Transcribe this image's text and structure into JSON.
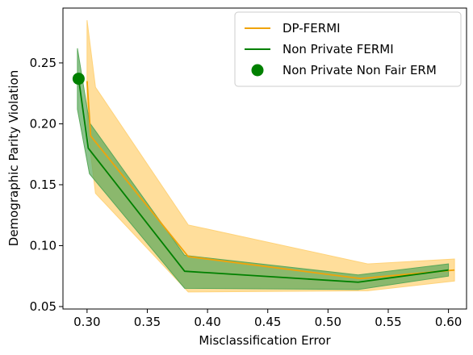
{
  "chart_data": {
    "type": "line",
    "xlabel": "Misclassification Error",
    "ylabel": "Demographic Parity Violation",
    "xlim": [
      0.28,
      0.615
    ],
    "ylim": [
      0.048,
      0.295
    ],
    "x_ticks": [
      0.3,
      0.35,
      0.4,
      0.45,
      0.5,
      0.55,
      0.6
    ],
    "x_tick_labels": [
      "0.30",
      "0.35",
      "0.40",
      "0.45",
      "0.50",
      "0.55",
      "0.60"
    ],
    "y_ticks": [
      0.05,
      0.1,
      0.15,
      0.2,
      0.25
    ],
    "y_tick_labels": [
      "0.05",
      "0.10",
      "0.15",
      "0.20",
      "0.25"
    ],
    "grid": false,
    "legend_position": "top-right",
    "series": [
      {
        "name": "DP-FERMI",
        "kind": "line",
        "color": "#f0a30a",
        "band_color": "#ffd37a",
        "x": [
          0.3,
          0.303,
          0.384,
          0.527,
          0.605
        ],
        "y": [
          0.235,
          0.19,
          0.091,
          0.073,
          0.08
        ],
        "band_x": [
          0.3,
          0.307,
          0.384,
          0.533,
          0.605
        ],
        "lower": [
          0.2,
          0.143,
          0.062,
          0.063,
          0.071
        ],
        "upper": [
          0.285,
          0.23,
          0.117,
          0.085,
          0.089
        ]
      },
      {
        "name": "Non Private FERMI",
        "kind": "line",
        "color": "#008000",
        "band_color": "#5aa85a",
        "x": [
          0.293,
          0.301,
          0.381,
          0.525,
          0.6
        ],
        "y": [
          0.237,
          0.18,
          0.079,
          0.07,
          0.08
        ],
        "band_x": [
          0.292,
          0.302,
          0.381,
          0.525,
          0.6
        ],
        "lower": [
          0.212,
          0.159,
          0.065,
          0.064,
          0.075
        ],
        "upper": [
          0.262,
          0.201,
          0.092,
          0.076,
          0.085
        ]
      },
      {
        "name": "Non Private Non Fair ERM",
        "kind": "point",
        "color": "#008000",
        "x": [
          0.293
        ],
        "y": [
          0.237
        ]
      }
    ]
  }
}
